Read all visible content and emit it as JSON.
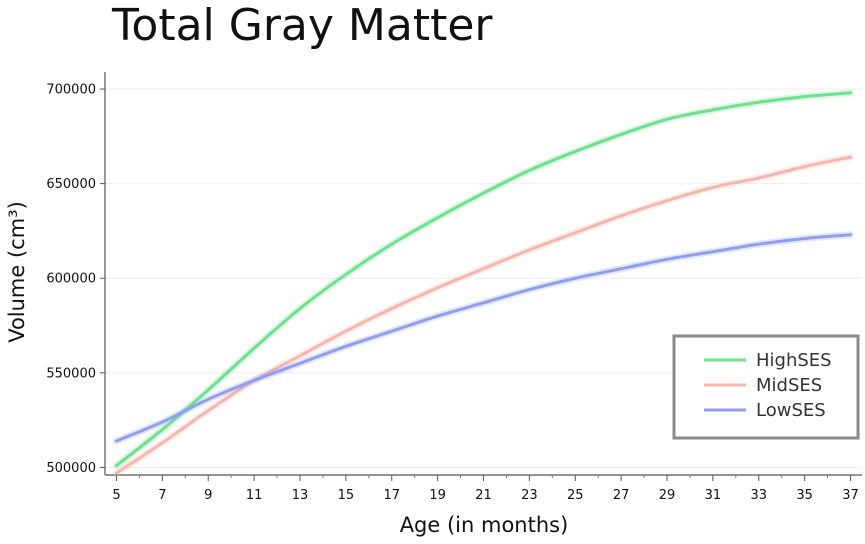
{
  "chart_data": {
    "type": "line",
    "title": "Total Gray Matter",
    "xlabel": "Age (in months)",
    "ylabel": "Volume (cm³)",
    "xlim": [
      4.5,
      37.5
    ],
    "ylim": [
      496000,
      709000
    ],
    "x_ticks": [
      5,
      7,
      9,
      11,
      13,
      15,
      17,
      19,
      21,
      23,
      25,
      27,
      29,
      31,
      33,
      35,
      37
    ],
    "y_ticks": [
      500000,
      550000,
      600000,
      650000,
      700000
    ],
    "grid": true,
    "legend": "bottom-right",
    "x": [
      5,
      7,
      9,
      11,
      13,
      15,
      17,
      19,
      21,
      23,
      25,
      27,
      29,
      31,
      33,
      35,
      37
    ],
    "series": [
      {
        "name": "HighSES",
        "color": "#6fe08f",
        "values": [
          501000,
          520000,
          541000,
          563000,
          584000,
          602000,
          618000,
          632000,
          645000,
          657000,
          667000,
          676000,
          684000,
          689000,
          693000,
          696000,
          698000
        ]
      },
      {
        "name": "MidSES",
        "color": "#f6b6ae",
        "values": [
          497000,
          513000,
          530000,
          546000,
          559000,
          572000,
          584000,
          595000,
          605000,
          615000,
          624000,
          633000,
          641000,
          648000,
          653000,
          659000,
          664000
        ]
      },
      {
        "name": "LowSES",
        "color": "#8f9ef0",
        "values": [
          514000,
          524000,
          536000,
          546000,
          555000,
          564000,
          572000,
          580000,
          587000,
          594000,
          600000,
          605000,
          610000,
          614000,
          618000,
          621000,
          623000
        ]
      }
    ]
  }
}
